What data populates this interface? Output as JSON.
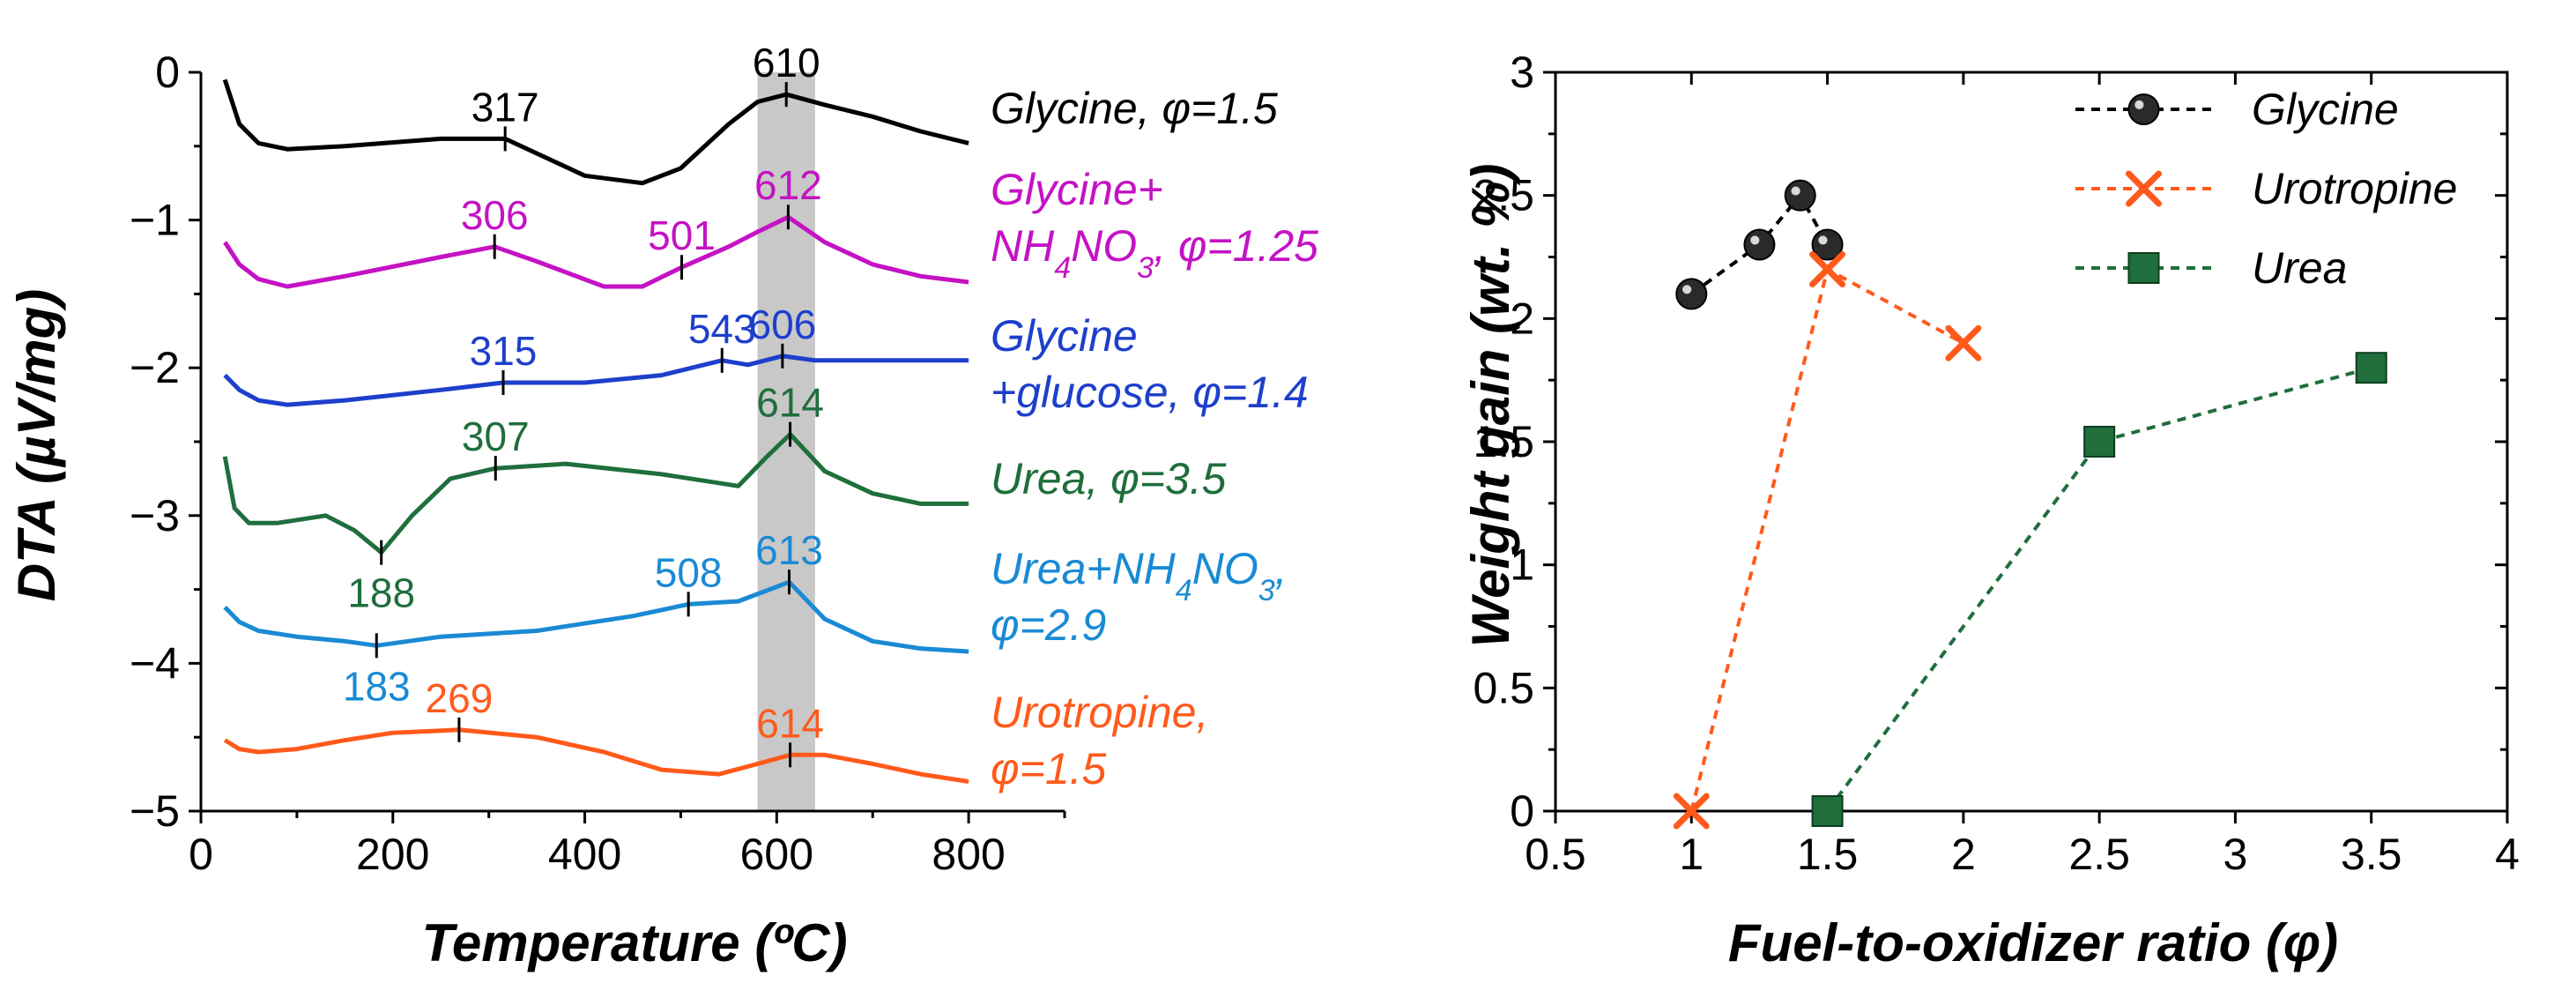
{
  "figure": {
    "colors": {
      "black": "#000000",
      "magenta": "#c412c4",
      "blue": "#1d3fcc",
      "green": "#1f6e3c",
      "lightblue": "#1a8ad4",
      "orange": "#ff5a1c",
      "band": "#c8c8c8"
    }
  },
  "chart_data": [
    {
      "type": "line",
      "title": "",
      "xlabel": "Temperature (ºC)",
      "ylabel": "DTA (µV/mg)",
      "xlim": [
        0,
        900
      ],
      "ylim": [
        -5,
        0
      ],
      "xticks": [
        0,
        200,
        400,
        600,
        800
      ],
      "xtick_labels": [
        "0",
        "200",
        "400",
        "600",
        "800"
      ],
      "yticks": [
        0,
        -1,
        -2,
        -3,
        -4,
        -5
      ],
      "ytick_labels": [
        "0",
        "−1",
        "−2",
        "−3",
        "−4",
        "−5"
      ],
      "shaded_band": [
        580,
        640
      ],
      "series": [
        {
          "name": "Glycine, φ=1.5",
          "label_lines": [
            "Glycine, φ=1.5"
          ],
          "color": "black",
          "x": [
            25,
            40,
            60,
            90,
            150,
            250,
            317,
            400,
            460,
            500,
            550,
            580,
            610,
            650,
            700,
            750,
            800
          ],
          "y": [
            -0.05,
            -0.35,
            -0.48,
            -0.52,
            -0.5,
            -0.45,
            -0.45,
            -0.7,
            -0.75,
            -0.65,
            -0.35,
            -0.2,
            -0.15,
            -0.22,
            -0.3,
            -0.4,
            -0.48
          ],
          "peaks": [
            {
              "x": 317,
              "y": -0.45,
              "label": "317"
            },
            {
              "x": 610,
              "y": -0.15,
              "label": "610"
            }
          ]
        },
        {
          "name": "Glycine+NH4NO3, φ=1.25",
          "label_lines": [
            "Glycine+",
            "NH4NO3, φ=1.25"
          ],
          "color": "magenta",
          "x": [
            25,
            40,
            60,
            90,
            150,
            250,
            306,
            350,
            420,
            460,
            501,
            550,
            580,
            612,
            650,
            700,
            750,
            800
          ],
          "y": [
            -1.15,
            -1.3,
            -1.4,
            -1.45,
            -1.38,
            -1.25,
            -1.18,
            -1.28,
            -1.45,
            -1.45,
            -1.32,
            -1.18,
            -1.08,
            -0.98,
            -1.15,
            -1.3,
            -1.38,
            -1.42
          ],
          "peaks": [
            {
              "x": 306,
              "y": -1.18,
              "label": "306"
            },
            {
              "x": 501,
              "y": -1.32,
              "label": "501"
            },
            {
              "x": 612,
              "y": -0.98,
              "label": "612"
            }
          ]
        },
        {
          "name": "Glycine+glucose, φ=1.4",
          "label_lines": [
            "Glycine",
            "+glucose, φ=1.4"
          ],
          "color": "blue",
          "x": [
            25,
            40,
            60,
            90,
            150,
            250,
            315,
            400,
            480,
            543,
            570,
            606,
            640,
            700,
            750,
            800
          ],
          "y": [
            -2.05,
            -2.15,
            -2.22,
            -2.25,
            -2.22,
            -2.15,
            -2.1,
            -2.1,
            -2.05,
            -1.95,
            -1.98,
            -1.92,
            -1.95,
            -1.95,
            -1.95,
            -1.95
          ],
          "peaks": [
            {
              "x": 315,
              "y": -2.1,
              "label": "315"
            },
            {
              "x": 543,
              "y": -1.95,
              "label": "543"
            },
            {
              "x": 606,
              "y": -1.92,
              "label": "606"
            }
          ]
        },
        {
          "name": "Urea, φ=3.5",
          "label_lines": [
            "Urea, φ=3.5"
          ],
          "color": "green",
          "x": [
            25,
            35,
            50,
            80,
            130,
            160,
            188,
            220,
            260,
            307,
            380,
            480,
            560,
            590,
            614,
            650,
            700,
            750,
            800
          ],
          "y": [
            -2.6,
            -2.95,
            -3.05,
            -3.05,
            -3.0,
            -3.1,
            -3.25,
            -3.0,
            -2.75,
            -2.68,
            -2.65,
            -2.72,
            -2.8,
            -2.6,
            -2.45,
            -2.7,
            -2.85,
            -2.92,
            -2.92
          ],
          "peaks": [
            {
              "x": 307,
              "y": -2.68,
              "label": "307"
            },
            {
              "x": 188,
              "y": -3.25,
              "label": "188"
            },
            {
              "x": 614,
              "y": -2.45,
              "label": "614"
            }
          ]
        },
        {
          "name": "Urea+NH4NO3, φ=2.9",
          "label_lines": [
            "Urea+NH4NO3,",
            "φ=2.9"
          ],
          "color": "lightblue",
          "x": [
            25,
            40,
            60,
            100,
            150,
            183,
            250,
            350,
            450,
            508,
            560,
            613,
            650,
            700,
            750,
            800
          ],
          "y": [
            -3.62,
            -3.72,
            -3.78,
            -3.82,
            -3.85,
            -3.88,
            -3.82,
            -3.78,
            -3.68,
            -3.6,
            -3.58,
            -3.45,
            -3.7,
            -3.85,
            -3.9,
            -3.92
          ],
          "peaks": [
            {
              "x": 183,
              "y": -3.88,
              "label": "183"
            },
            {
              "x": 508,
              "y": -3.6,
              "label": "508"
            },
            {
              "x": 613,
              "y": -3.45,
              "label": "613"
            }
          ]
        },
        {
          "name": "Urotropine, φ=1.5",
          "label_lines": [
            "Urotropine,",
            "φ=1.5"
          ],
          "color": "orange",
          "x": [
            25,
            40,
            60,
            100,
            150,
            200,
            269,
            350,
            420,
            480,
            540,
            580,
            614,
            650,
            700,
            750,
            800
          ],
          "y": [
            -4.52,
            -4.58,
            -4.6,
            -4.58,
            -4.52,
            -4.47,
            -4.45,
            -4.5,
            -4.6,
            -4.72,
            -4.75,
            -4.68,
            -4.62,
            -4.62,
            -4.68,
            -4.75,
            -4.8
          ],
          "peaks": [
            {
              "x": 269,
              "y": -4.45,
              "label": "269"
            },
            {
              "x": 614,
              "y": -4.62,
              "label": "614"
            }
          ]
        }
      ]
    },
    {
      "type": "scatter",
      "title": "",
      "xlabel": "Fuel-to-oxidizer ratio (φ)",
      "ylabel": "Weight gain (wt. %)",
      "xlim": [
        0.5,
        4
      ],
      "ylim": [
        0,
        3
      ],
      "xticks": [
        0.5,
        1,
        1.5,
        2,
        2.5,
        3,
        3.5,
        4
      ],
      "xtick_labels": [
        "0.5",
        "1",
        "1.5",
        "2",
        "2.5",
        "3",
        "3.5",
        "4"
      ],
      "yticks": [
        0,
        0.5,
        1,
        1.5,
        2,
        2.5,
        3
      ],
      "ytick_labels": [
        "0",
        "0.5",
        "1",
        "1.5",
        "2",
        "2.5",
        "3"
      ],
      "legend_position": "top-right",
      "series": [
        {
          "name": "Glycine",
          "marker": "circle",
          "color": "black",
          "x": [
            1,
            1.25,
            1.4,
            1.5
          ],
          "y": [
            2.1,
            2.3,
            2.5,
            2.3
          ]
        },
        {
          "name": "Urotropine",
          "marker": "x",
          "color": "orange",
          "x": [
            1,
            1.5,
            2
          ],
          "y": [
            0,
            2.2,
            1.9
          ]
        },
        {
          "name": "Urea",
          "marker": "square",
          "color": "green",
          "x": [
            1.5,
            2.5,
            3.5
          ],
          "y": [
            0,
            1.5,
            1.8
          ]
        }
      ]
    }
  ]
}
